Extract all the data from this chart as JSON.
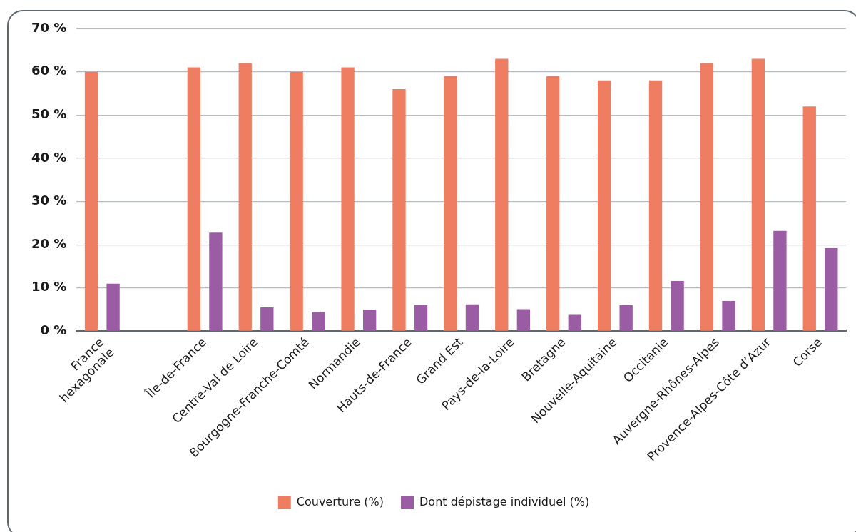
{
  "chart_data": {
    "type": "bar",
    "categories": [
      "France\nhexagonale",
      null,
      "Île-de-France",
      "Centre-Val de Loire",
      "Bourgogne-Franche-Comté",
      "Normandie",
      "Hauts-de-France",
      "Grand Est",
      "Pays-de-la-Loire",
      "Bretagne",
      "Nouvelle-Aquitaine",
      "Occitanie",
      "Auvergne-Rhônes-Alpes",
      "Provence-Alpes-Côte d’Azur",
      "Corse"
    ],
    "series": [
      {
        "name": "Couverture (%)",
        "color": "#ef7d62",
        "values": [
          60,
          null,
          61,
          62,
          60,
          61,
          56,
          59,
          63,
          59,
          58,
          58,
          62,
          63,
          52
        ]
      },
      {
        "name": "Dont dépistage individuel (%)",
        "color": "#9a5ca3",
        "values": [
          11,
          null,
          22.8,
          5.5,
          4.5,
          5,
          6.1,
          6.2,
          5.1,
          3.8,
          6,
          11.6,
          7,
          23.2,
          19.2
        ]
      }
    ],
    "ylim": [
      0,
      70
    ],
    "yticks": [
      {
        "value": 0,
        "label": "0 %"
      },
      {
        "value": 10,
        "label": "10 %"
      },
      {
        "value": 20,
        "label": "20 %"
      },
      {
        "value": 30,
        "label": "30 %"
      },
      {
        "value": 40,
        "label": "40 %"
      },
      {
        "value": 50,
        "label": "50 %"
      },
      {
        "value": 60,
        "label": "60 %"
      },
      {
        "value": 70,
        "label": "70 %"
      }
    ],
    "grid": "y",
    "legend": "bottom"
  }
}
